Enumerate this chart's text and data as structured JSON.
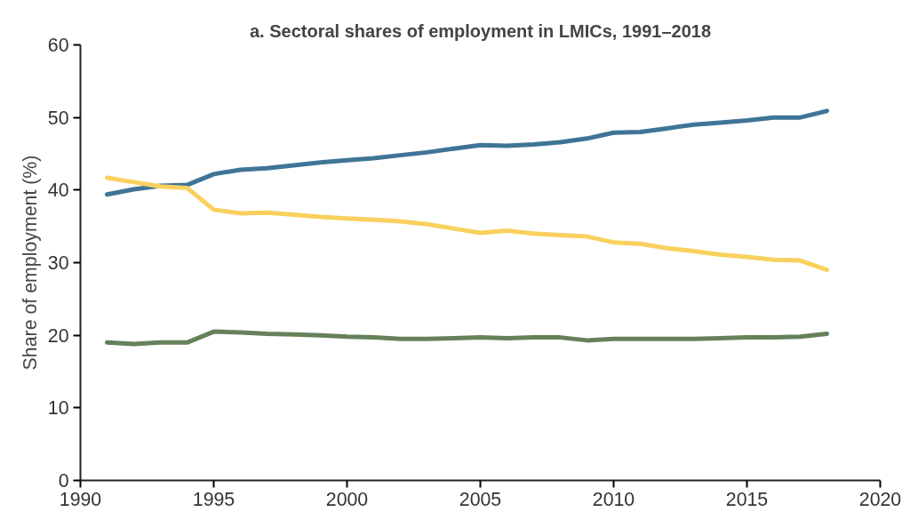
{
  "chart_data": {
    "type": "line",
    "title": "a. Sectoral shares of employment in LMICs, 1991–2018",
    "ylabel": "Share of employment (%)",
    "x": [
      1991,
      1992,
      1993,
      1994,
      1995,
      1996,
      1997,
      1998,
      1999,
      2000,
      2001,
      2002,
      2003,
      2004,
      2005,
      2006,
      2007,
      2008,
      2009,
      2010,
      2011,
      2012,
      2013,
      2014,
      2015,
      2016,
      2017,
      2018
    ],
    "series": [
      {
        "color": "#3f7497",
        "values": [
          39.4,
          40.1,
          40.6,
          40.7,
          42.2,
          42.8,
          43.0,
          43.4,
          43.8,
          44.1,
          44.4,
          44.8,
          45.2,
          45.7,
          46.2,
          46.1,
          46.3,
          46.6,
          47.1,
          47.9,
          48.0,
          48.5,
          49.0,
          49.3,
          49.6,
          50.0,
          50.0,
          50.9
        ]
      },
      {
        "color": "#f9d15e",
        "values": [
          41.7,
          41.1,
          40.5,
          40.3,
          37.3,
          36.8,
          36.9,
          36.6,
          36.3,
          36.1,
          35.9,
          35.7,
          35.3,
          34.7,
          34.1,
          34.4,
          34.0,
          33.8,
          33.6,
          32.8,
          32.6,
          32.0,
          31.6,
          31.1,
          30.8,
          30.4,
          30.3,
          29.0
        ]
      },
      {
        "color": "#66805a",
        "values": [
          19.0,
          18.8,
          19.0,
          19.0,
          20.5,
          20.4,
          20.2,
          20.1,
          20.0,
          19.8,
          19.7,
          19.5,
          19.5,
          19.6,
          19.7,
          19.6,
          19.7,
          19.7,
          19.3,
          19.5,
          19.5,
          19.5,
          19.5,
          19.6,
          19.7,
          19.7,
          19.8,
          20.2
        ]
      }
    ],
    "xlim": [
      1990,
      2020
    ],
    "xticks": [
      1990,
      1995,
      2000,
      2005,
      2010,
      2015,
      2020
    ],
    "ylim": [
      0,
      60
    ],
    "yticks": [
      0,
      10,
      20,
      30,
      40,
      50,
      60
    ],
    "grid": false,
    "marker": "none",
    "line_style": "solid"
  }
}
